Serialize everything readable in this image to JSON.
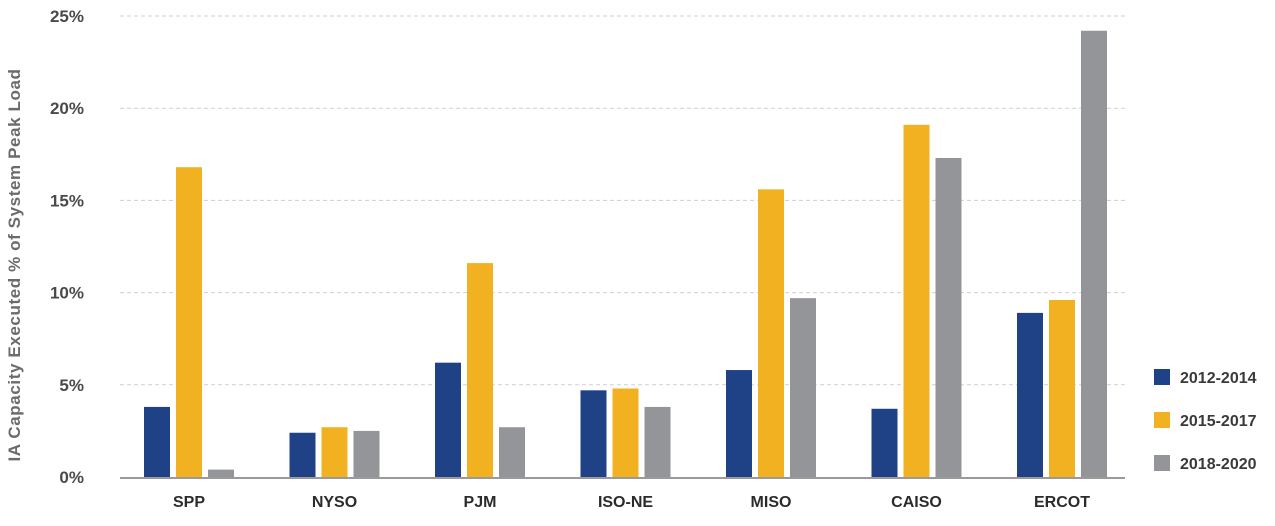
{
  "chart_data": {
    "type": "bar",
    "title": "",
    "xlabel": "",
    "ylabel": "IA Capacity Executed % of System Peak Load",
    "categories": [
      "SPP",
      "NYSO",
      "PJM",
      "ISO-NE",
      "MISO",
      "CAISO",
      "ERCOT"
    ],
    "series": [
      {
        "name": "2012-2014",
        "color": "#1f4287",
        "values": [
          3.8,
          2.4,
          6.2,
          4.7,
          5.8,
          3.7,
          8.9
        ]
      },
      {
        "name": "2015-2017",
        "color": "#f2b120",
        "values": [
          16.8,
          2.7,
          11.6,
          4.8,
          15.6,
          19.1,
          9.6
        ]
      },
      {
        "name": "2018-2020",
        "color": "#939598",
        "values": [
          0.4,
          2.5,
          2.7,
          3.8,
          9.7,
          17.3,
          24.2
        ]
      }
    ],
    "yticks": [
      "0%",
      "5%",
      "10%",
      "15%",
      "20%",
      "25%"
    ],
    "ytick_values": [
      0,
      5,
      10,
      15,
      20,
      25
    ],
    "ylim": [
      0,
      25
    ],
    "grid": true,
    "legend_position": "right"
  }
}
